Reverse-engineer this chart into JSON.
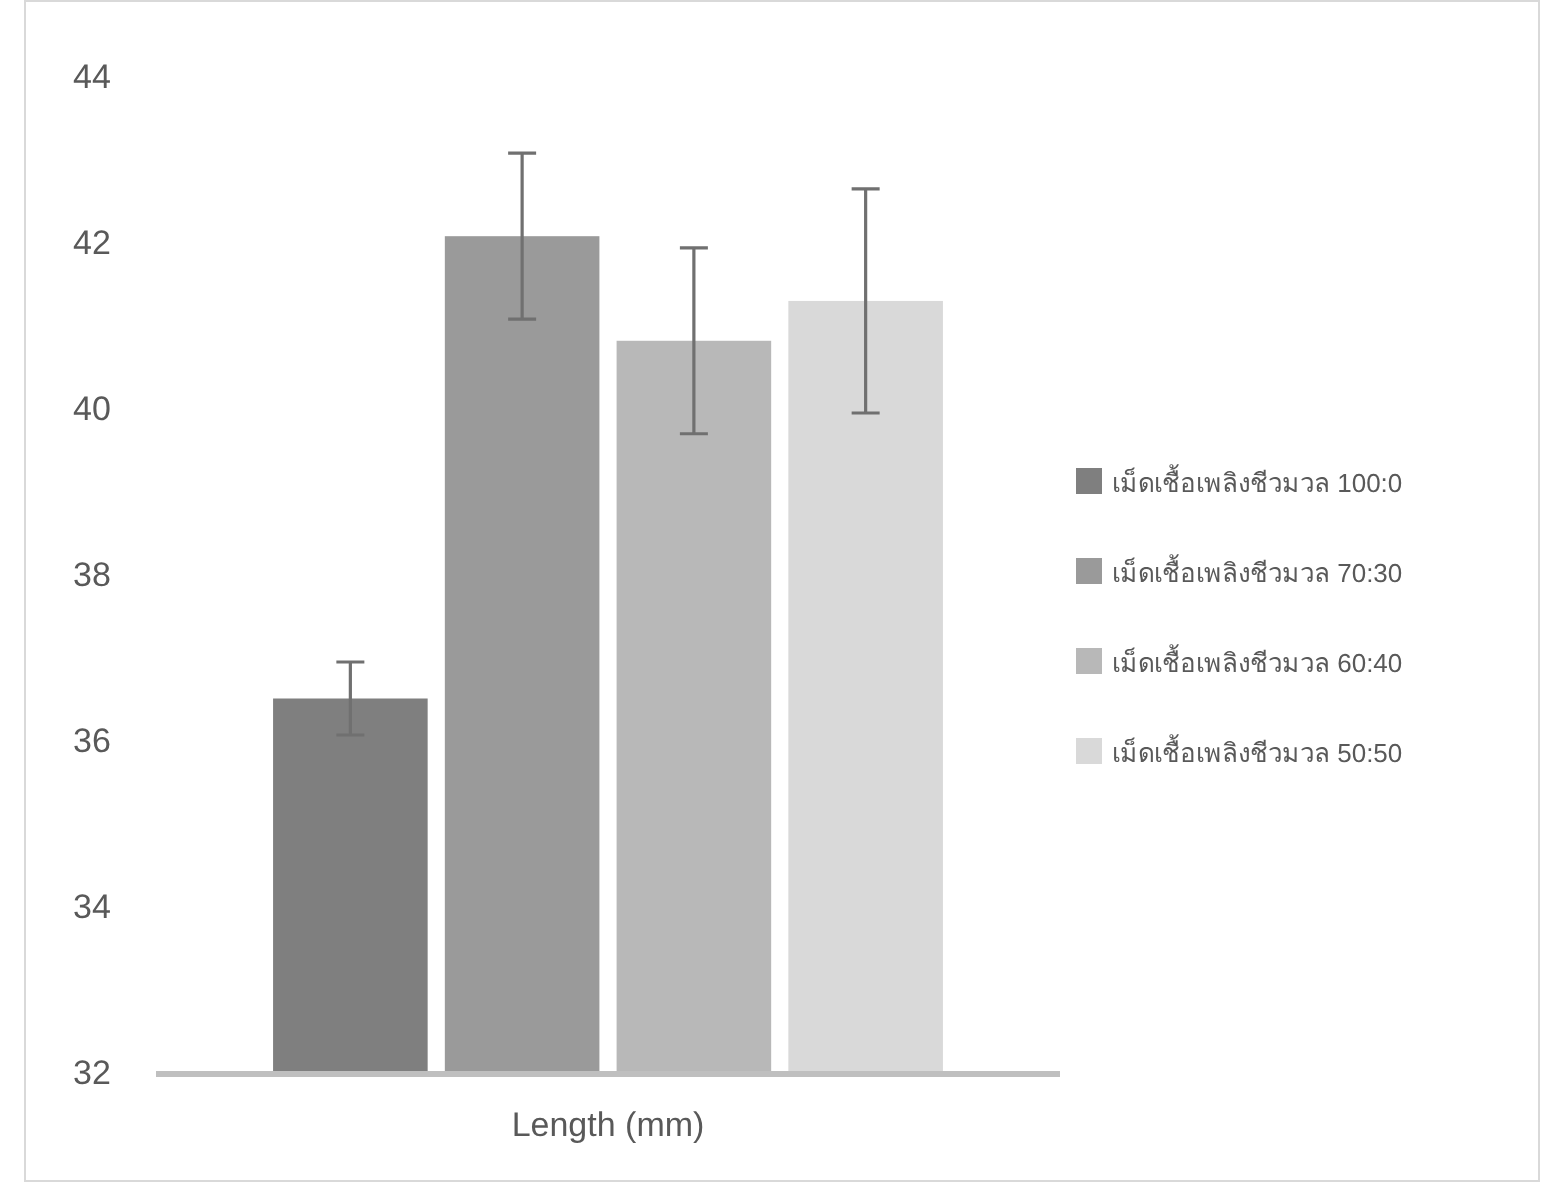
{
  "chart_data": {
    "type": "bar",
    "categories": [
      "Length (mm)"
    ],
    "series": [
      {
        "name": "เม็ดเชื้อเพลิงชีวมวล 100:0",
        "color": "#7f7f7f",
        "values": [
          36.5
        ],
        "errors": [
          0.44
        ]
      },
      {
        "name": "เม็ดเชื้อเพลิงชีวมวล 70:30",
        "color": "#9a9a9a",
        "values": [
          42.07
        ],
        "errors": [
          1.0
        ]
      },
      {
        "name": "เม็ดเชื้อเพลิงชีวมวล 60:40",
        "color": "#b8b8b8",
        "values": [
          40.81
        ],
        "errors": [
          1.12
        ]
      },
      {
        "name": "เม็ดเชื้อเพลิงชีวมวล 50:50",
        "color": "#d9d9d9",
        "values": [
          41.29
        ],
        "errors": [
          1.35
        ]
      }
    ],
    "ylim": [
      32,
      44
    ],
    "yticks": [
      32,
      34,
      36,
      38,
      40,
      42,
      44
    ],
    "grid": false,
    "legend": "right"
  }
}
